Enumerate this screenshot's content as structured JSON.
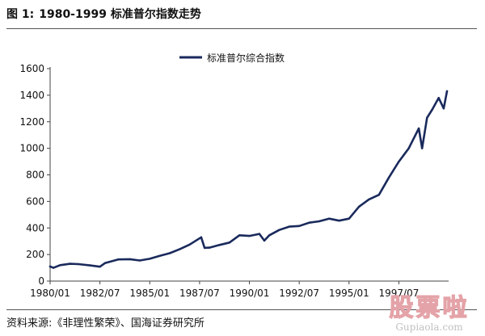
{
  "figure": {
    "label": "图 1:",
    "title": "1980-1999 标准普尔指数走势"
  },
  "source": "资料来源:《非理性繁荣》、国海证券研究所",
  "watermark": {
    "logo": "股票啦",
    "domain": "Gupiaola.com"
  },
  "colors": {
    "series": "#1a2a5c",
    "axis": "#444444",
    "text": "#111111"
  },
  "chart_data": {
    "type": "line",
    "title": "",
    "xlabel": "",
    "ylabel": "",
    "legend_position": "top-center",
    "grid": false,
    "ylim": [
      0,
      1600
    ],
    "yticks": [
      0,
      200,
      400,
      600,
      800,
      1000,
      1200,
      1400,
      1600
    ],
    "xlim": [
      "1980-01",
      "1999-12"
    ],
    "xticks": [
      "1980/01",
      "1982/07",
      "1985/01",
      "1987/07",
      "1990/01",
      "1992/07",
      "1995/01",
      "1997/07"
    ],
    "series": [
      {
        "name": "标准普尔综合指数",
        "x": [
          "1980-01",
          "1980-03",
          "1980-07",
          "1981-01",
          "1981-06",
          "1982-01",
          "1982-07",
          "1982-10",
          "1983-06",
          "1984-01",
          "1984-07",
          "1985-01",
          "1985-07",
          "1986-01",
          "1986-07",
          "1987-01",
          "1987-08",
          "1987-10",
          "1988-01",
          "1988-07",
          "1989-01",
          "1989-07",
          "1990-01",
          "1990-07",
          "1990-10",
          "1991-01",
          "1991-07",
          "1992-01",
          "1992-07",
          "1993-01",
          "1993-07",
          "1994-01",
          "1994-07",
          "1995-01",
          "1995-07",
          "1996-01",
          "1996-07",
          "1997-01",
          "1997-07",
          "1997-10",
          "1998-01",
          "1998-07",
          "1998-09",
          "1998-12",
          "1999-03",
          "1999-07",
          "1999-10",
          "1999-12"
        ],
        "values": [
          110,
          100,
          120,
          130,
          128,
          118,
          108,
          135,
          163,
          165,
          155,
          168,
          190,
          210,
          240,
          275,
          330,
          250,
          252,
          272,
          290,
          345,
          340,
          355,
          305,
          345,
          385,
          410,
          415,
          440,
          450,
          470,
          455,
          470,
          560,
          615,
          650,
          780,
          900,
          950,
          1000,
          1150,
          1000,
          1230,
          1290,
          1380,
          1300,
          1430
        ]
      }
    ]
  }
}
